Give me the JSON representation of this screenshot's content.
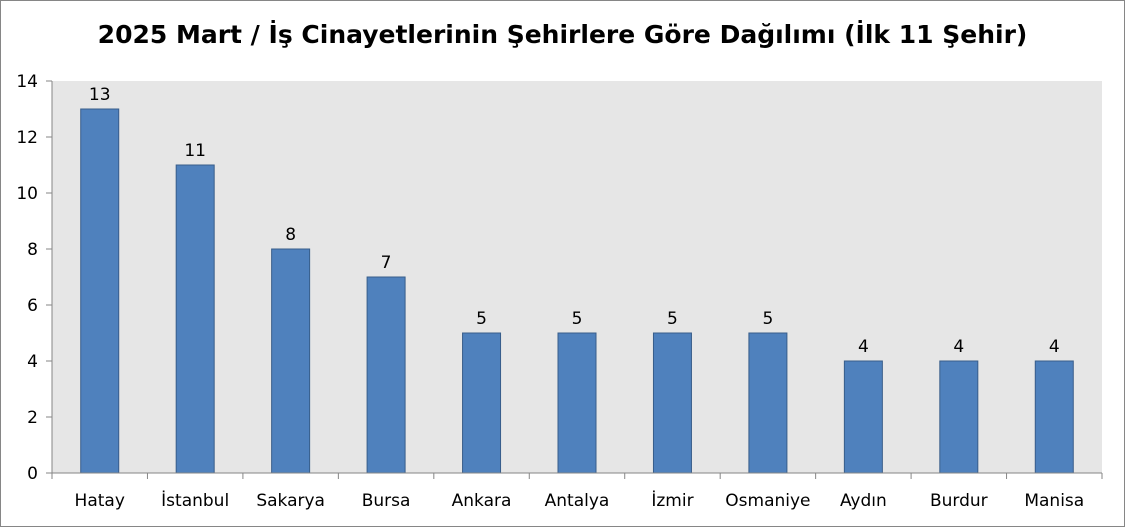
{
  "chart_data": {
    "type": "bar",
    "title": "2025 Mart / İş Cinayetlerinin Şehirlere Göre Dağılımı (İlk 11 Şehir)",
    "xlabel": "",
    "ylabel": "",
    "categories": [
      "Hatay",
      "İstanbul",
      "Sakarya",
      "Bursa",
      "Ankara",
      "Antalya",
      "İzmir",
      "Osmaniye",
      "Aydın",
      "Burdur",
      "Manisa"
    ],
    "values": [
      13,
      11,
      8,
      7,
      5,
      5,
      5,
      5,
      4,
      4,
      4
    ],
    "ylim": [
      0,
      14
    ],
    "yticks": [
      0,
      2,
      4,
      6,
      8,
      10,
      12,
      14
    ],
    "grid": false,
    "legend": "none",
    "data_labels": true,
    "colors": {
      "bar_fill": "#4F81BD",
      "bar_stroke": "#385D8A",
      "plot_background": "#E6E6E6",
      "axis": "#868686"
    }
  }
}
